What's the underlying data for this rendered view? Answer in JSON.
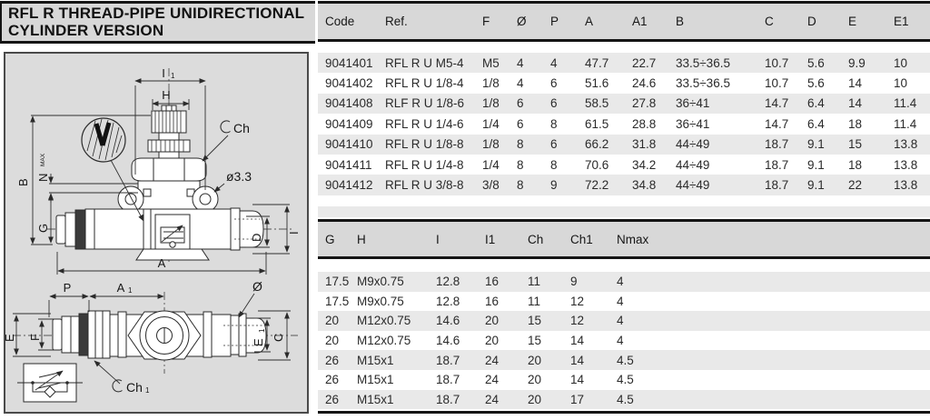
{
  "title": {
    "line1": "RFL R THREAD-PIPE UNIDIRECTIONAL",
    "line2": "CYLINDER VERSION"
  },
  "drawing": {
    "top_view": {
      "i1": "I",
      "i1_sub": "1",
      "h": "H",
      "ch": "Ch",
      "hole_dia": "ø3.3",
      "b": "B",
      "n": "N",
      "n_sup": "MAX",
      "g": "G",
      "a": "A",
      "d": "D",
      "i": "I"
    },
    "bottom_view": {
      "p": "P",
      "a1": "A",
      "a1_sub": "1",
      "dia": "Ø",
      "e": "E",
      "f": "F",
      "e1": "E",
      "e1_sub": "1",
      "c": "C",
      "ch1": "Ch",
      "ch1_sub": "1"
    }
  },
  "table1": {
    "headers": [
      "Code",
      "Ref.",
      "F",
      "Ø",
      "P",
      "A",
      "A1",
      "B",
      "C",
      "D",
      "E",
      "E1"
    ],
    "rows": [
      [
        "9041401",
        "RFL R U M5-4",
        "M5",
        "4",
        "4",
        "47.7",
        "22.7",
        "33.5÷36.5",
        "10.7",
        "5.6",
        "9.9",
        "10"
      ],
      [
        "9041402",
        "RFL R U 1/8-4",
        "1/8",
        "4",
        "6",
        "51.6",
        "24.6",
        "33.5÷36.5",
        "10.7",
        "5.6",
        "14",
        "10"
      ],
      [
        "9041408",
        "RLF R U 1/8-6",
        "1/8",
        "6",
        "6",
        "58.5",
        "27.8",
        "36÷41",
        "14.7",
        "6.4",
        "14",
        "11.4"
      ],
      [
        "9041409",
        "RFL R U 1/4-6",
        "1/4",
        "6",
        "8",
        "61.5",
        "28.8",
        "36÷41",
        "14.7",
        "6.4",
        "18",
        "11.4"
      ],
      [
        "9041410",
        "RFL R U 1/8-8",
        "1/8",
        "8",
        "6",
        "66.2",
        "31.8",
        "44÷49",
        "18.7",
        "9.1",
        "15",
        "13.8"
      ],
      [
        "9041411",
        "RFL R U 1/4-8",
        "1/4",
        "8",
        "8",
        "70.6",
        "34.2",
        "44÷49",
        "18.7",
        "9.1",
        "18",
        "13.8"
      ],
      [
        "9041412",
        "RFL R U 3/8-8",
        "3/8",
        "8",
        "9",
        "72.2",
        "34.8",
        "44÷49",
        "18.7",
        "9.1",
        "22",
        "13.8"
      ]
    ]
  },
  "table2": {
    "headers": [
      "G",
      "H",
      "I",
      "I1",
      "Ch",
      "Ch1",
      "Nmax"
    ],
    "rows": [
      [
        "17.5",
        "M9x0.75",
        "12.8",
        "16",
        "11",
        "9",
        "4"
      ],
      [
        "17.5",
        "M9x0.75",
        "12.8",
        "16",
        "11",
        "12",
        "4"
      ],
      [
        "20",
        "M12x0.75",
        "14.6",
        "20",
        "15",
        "12",
        "4"
      ],
      [
        "20",
        "M12x0.75",
        "14.6",
        "20",
        "15",
        "14",
        "4"
      ],
      [
        "26",
        "M15x1",
        "18.7",
        "24",
        "20",
        "14",
        "4.5"
      ],
      [
        "26",
        "M15x1",
        "18.7",
        "24",
        "20",
        "14",
        "4.5"
      ],
      [
        "26",
        "M15x1",
        "18.7",
        "24",
        "20",
        "17",
        "4.5"
      ]
    ]
  },
  "colors": {
    "band_bg": "#d8d8d8",
    "stripe": "#e9e9e9",
    "drawing_bg": "#dcdcdc",
    "rule": "#151515",
    "ink": "#222222"
  }
}
